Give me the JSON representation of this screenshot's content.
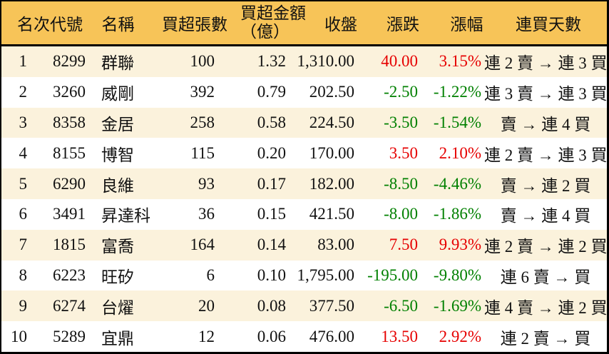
{
  "header": {
    "rank": "名次",
    "code": "代號",
    "name": "名稱",
    "volume": "買超張數",
    "amount_line1": "買超金額",
    "amount_line2": "（億）",
    "close": "收盤",
    "change": "漲跌",
    "change_pct": "漲幅",
    "streak": "連買天數"
  },
  "chart_data": {
    "type": "table",
    "columns": [
      "名次",
      "代號",
      "名稱",
      "買超張數",
      "買超金額（億）",
      "收盤",
      "漲跌",
      "漲幅",
      "連買天數"
    ],
    "rows": [
      [
        "1",
        "8299",
        "群聯",
        "100",
        "1.32",
        "1,310.00",
        "40.00",
        "3.15%",
        "連 2 賣 → 連 3 買"
      ],
      [
        "2",
        "3260",
        "威剛",
        "392",
        "0.79",
        "202.50",
        "-2.50",
        "-1.22%",
        "連 3 賣 → 連 3 買"
      ],
      [
        "3",
        "8358",
        "金居",
        "258",
        "0.58",
        "224.50",
        "-3.50",
        "-1.54%",
        "賣 → 連 4 買"
      ],
      [
        "4",
        "8155",
        "博智",
        "115",
        "0.20",
        "170.00",
        "3.50",
        "2.10%",
        "連 2 賣 → 連 3 買"
      ],
      [
        "5",
        "6290",
        "良維",
        "93",
        "0.17",
        "182.00",
        "-8.50",
        "-4.46%",
        "賣 → 連 2 買"
      ],
      [
        "6",
        "3491",
        "昇達科",
        "36",
        "0.15",
        "421.50",
        "-8.00",
        "-1.86%",
        "賣 → 連 4 買"
      ],
      [
        "7",
        "1815",
        "富喬",
        "164",
        "0.14",
        "83.00",
        "7.50",
        "9.93%",
        "連 2 賣 → 連 2 買"
      ],
      [
        "8",
        "6223",
        "旺矽",
        "6",
        "0.10",
        "1,795.00",
        "-195.00",
        "-9.80%",
        "連 6 賣 → 買"
      ],
      [
        "9",
        "6274",
        "台燿",
        "20",
        "0.08",
        "377.50",
        "-6.50",
        "-1.69%",
        "連 4 賣 → 連 2 買"
      ],
      [
        "10",
        "5289",
        "宜鼎",
        "12",
        "0.06",
        "476.00",
        "13.50",
        "2.92%",
        "連 2 賣 → 買"
      ]
    ]
  },
  "colors": {
    "header_bg": "#f7c458",
    "row_alt_bg": "#fbf2dc",
    "row_bg": "#ffffff",
    "up_red": "#e60000",
    "down_green": "#008000",
    "border": "#000000"
  }
}
